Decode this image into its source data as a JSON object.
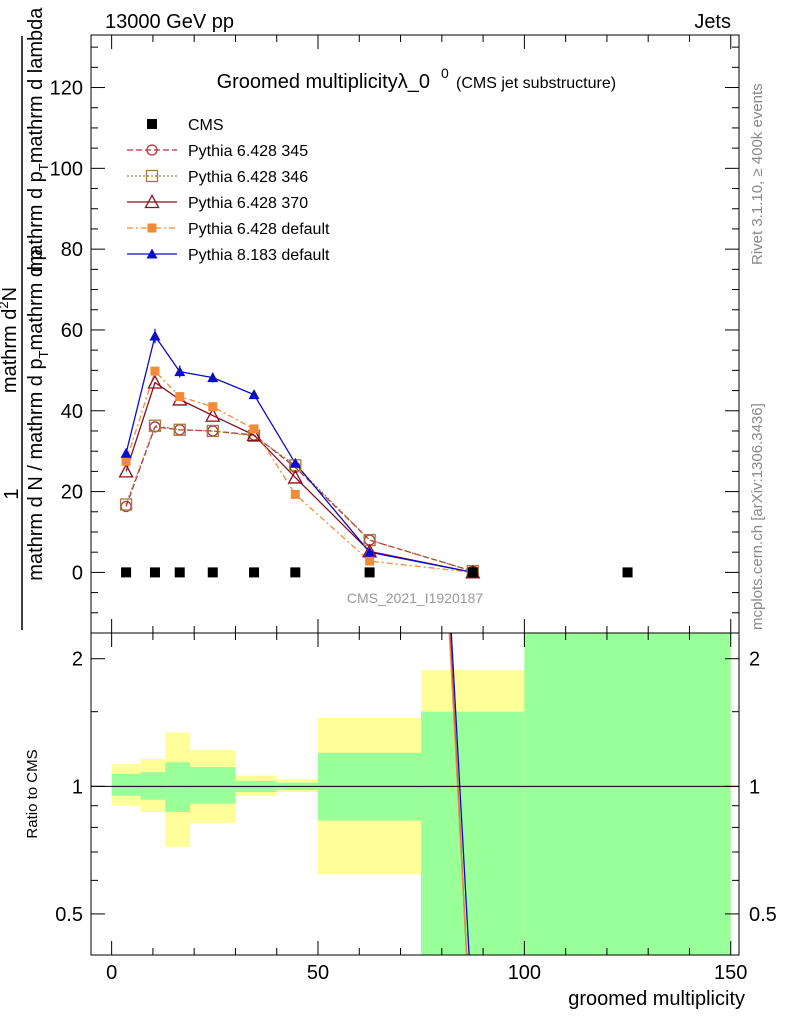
{
  "header": {
    "energy_label": "13000 GeV pp",
    "category_label": "Jets",
    "rivet_label": "Rivet 3.1.10, ≥ 400k events",
    "mcplots_label": "mcplots.cern.ch [arXiv:1306.3436]"
  },
  "chart_data": [
    {
      "type": "line",
      "panel": "main",
      "title_main": "Groomed multiplicityλ_0",
      "title_sup": "0",
      "title_sub": "(CMS jet substructure)",
      "ylabel": "1 / (mathrm d N / mathrm d p_T mathrm d p_T mathrm d lambda) · mathrm d²N",
      "ylabel_num": "mathrm d²N",
      "ylabel_num_base": "mathrm d",
      "ylabel_num_sup": "2",
      "ylabel_num_tail": "N",
      "ylabel_num_line2": "mathrm d p",
      "ylabel_num_line2_sub": "T",
      "ylabel_num_line2_tail": "mathrm d lambda",
      "ylabel_lhs": "1",
      "ylabel_den": "mathrm d N / mathrm d p",
      "ylabel_den_sub": "T",
      "ylabel_den_tail": "mathrm d p",
      "ylabel_den_sub2": "T",
      "ylabel_den_tail2": "mathrm d lambda",
      "xlim": [
        -5,
        152
      ],
      "ylim": [
        -15,
        133
      ],
      "yticks": [
        0,
        20,
        40,
        60,
        80,
        100,
        120
      ],
      "watermark": "CMS_2021_I1920187",
      "data_series": {
        "name": "CMS",
        "x": [
          3.5,
          10.5,
          16.5,
          24.5,
          34.5,
          44.5,
          62.5,
          87.5,
          125
        ],
        "y": [
          0,
          0,
          0,
          0,
          0,
          0,
          0,
          0,
          0
        ]
      },
      "series": [
        {
          "name": "Pythia 6.428 345",
          "color": "#b5333e",
          "dash": "6,3",
          "marker": "circle-open",
          "x": [
            3.5,
            10.5,
            16.5,
            24.5,
            34.5,
            44.5,
            62.5,
            87.5
          ],
          "y": [
            16.3,
            36.0,
            35.3,
            35.0,
            34.0,
            26.0,
            8.0,
            0.3
          ]
        },
        {
          "name": "Pythia 6.428 346",
          "color": "#a07a3c",
          "dash": "2,2",
          "marker": "square-open",
          "x": [
            3.5,
            10.5,
            16.5,
            24.5,
            34.5,
            44.5,
            62.5,
            87.5
          ],
          "y": [
            16.8,
            36.3,
            35.3,
            35.0,
            33.8,
            26.5,
            8.0,
            0.3
          ]
        },
        {
          "name": "Pythia 6.428 370",
          "color": "#8b0c1c",
          "dash": "",
          "marker": "triangle-open",
          "x": [
            3.5,
            10.5,
            16.5,
            24.5,
            34.5,
            44.5,
            62.5,
            87.5
          ],
          "y": [
            25.0,
            47.0,
            42.8,
            38.8,
            34.0,
            23.5,
            5.2,
            0.0
          ]
        },
        {
          "name": "Pythia 6.428 default",
          "color": "#f28a38",
          "dash": "6,3,2,3",
          "marker": "square-filled",
          "x": [
            3.5,
            10.5,
            16.5,
            24.5,
            34.5,
            44.5,
            62.5,
            87.5
          ],
          "y": [
            27.5,
            49.8,
            43.5,
            41.0,
            35.5,
            19.3,
            2.8,
            0.0
          ]
        },
        {
          "name": "Pythia 8.183 default",
          "color": "#0a0ad0",
          "dash": "",
          "marker": "triangle-filled",
          "x": [
            3.5,
            10.5,
            16.5,
            24.5,
            34.5,
            44.5,
            62.5,
            87.5
          ],
          "y": [
            29.5,
            58.5,
            49.7,
            48.2,
            44.0,
            27.0,
            5.0,
            0.0
          ],
          "yerr": [
            0.8,
            1.8,
            1.5,
            1.2,
            0.8,
            0.6,
            0.3,
            0.1
          ]
        }
      ]
    },
    {
      "type": "ratio-band",
      "panel": "ratio",
      "ylabel": "Ratio to CMS",
      "xlabel": "groomed multiplicity",
      "xlim": [
        -5,
        152
      ],
      "ylim": [
        0.4,
        2.3
      ],
      "yticks": [
        0.5,
        1,
        2
      ],
      "ytick_labels": [
        "0.5",
        "1",
        "2"
      ],
      "xticks": [
        0,
        50,
        100,
        150
      ],
      "xtick_labels": [
        "0",
        "50",
        "100",
        "150"
      ],
      "bins": [
        {
          "x0": 0,
          "x1": 7,
          "green": [
            0.95,
            1.07
          ],
          "yellow": [
            0.9,
            1.13
          ]
        },
        {
          "x0": 7,
          "x1": 13,
          "green": [
            0.93,
            1.08
          ],
          "yellow": [
            0.87,
            1.16
          ]
        },
        {
          "x0": 13,
          "x1": 19,
          "green": [
            0.87,
            1.14
          ],
          "yellow": [
            0.72,
            1.34
          ]
        },
        {
          "x0": 19,
          "x1": 30,
          "green": [
            0.91,
            1.11
          ],
          "yellow": [
            0.82,
            1.22
          ]
        },
        {
          "x0": 30,
          "x1": 40,
          "green": [
            0.97,
            1.03
          ],
          "yellow": [
            0.95,
            1.06
          ]
        },
        {
          "x0": 40,
          "x1": 50,
          "green": [
            0.98,
            1.02
          ],
          "yellow": [
            0.97,
            1.04
          ]
        },
        {
          "x0": 50,
          "x1": 75,
          "green": [
            0.83,
            1.2
          ],
          "yellow": [
            0.62,
            1.45
          ]
        },
        {
          "x0": 75,
          "x1": 100,
          "green": [
            0.4,
            1.5
          ],
          "yellow": [
            0.4,
            1.88
          ]
        },
        {
          "x0": 100,
          "x1": 150,
          "green": [
            0.4,
            2.3
          ],
          "yellow": [
            0.4,
            2.3
          ]
        }
      ],
      "ratio_lines": [
        {
          "name": "Pythia 6.428 345",
          "color": "#b5333e",
          "x": [
            82,
            86
          ],
          "y": [
            2.3,
            0.4
          ]
        },
        {
          "name": "Pythia 6.428 default",
          "color": "#f28a38",
          "x": [
            81.8,
            86
          ],
          "y": [
            2.3,
            0.4
          ]
        },
        {
          "name": "Pythia 8.183 default",
          "color": "#0a0ad0",
          "x": [
            82.3,
            86.6
          ],
          "y": [
            2.3,
            0.4
          ]
        }
      ]
    }
  ]
}
